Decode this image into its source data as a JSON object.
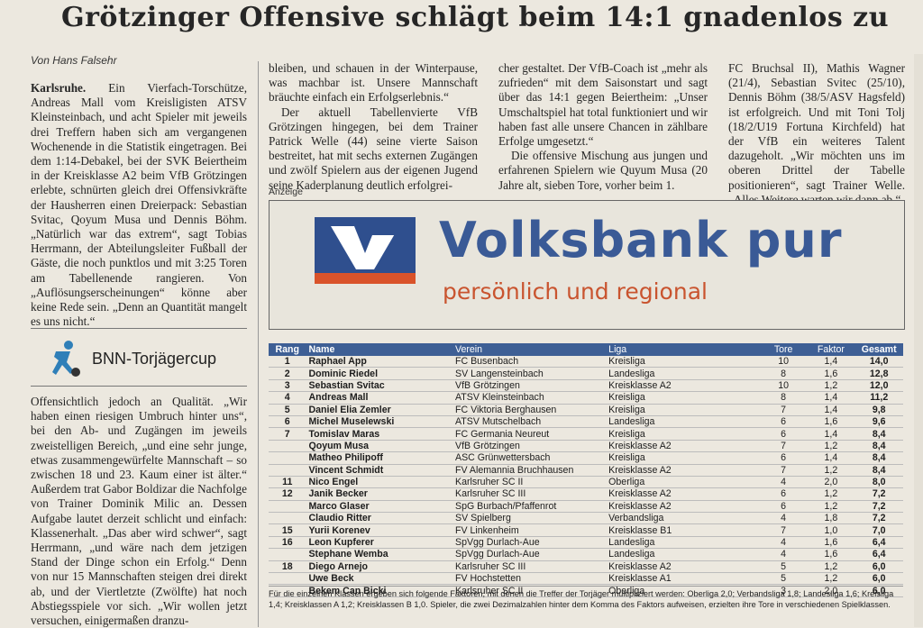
{
  "headline": "Grötzinger Offensive schlägt beim 14:1 gnadenlos zu",
  "byline": "Von Hans Falsehr",
  "col1_lead": "Karlsruhe.",
  "col1_text": "Ein Vierfach-Torschütze, Andreas Mall vom Kreisligisten ATSV Kleinsteinbach, und acht Spieler mit jeweils drei Treffern haben sich am vergangenen Wochenende in die Statistik eingetragen. Bei dem 1:14-Debakel, bei der SVK Beiertheim in der Kreisklasse A2 beim VfB Grötzingen erlebte, schnürten gleich drei Offensivkräfte der Hausherren einen Dreierpack: Sebastian Svitac, Qoyum Musa und Dennis Böhm. „Natürlich war das extrem“, sagt Tobias Herrmann, der Abteilungsleiter Fußball der Gäste, die noch punktlos und mit 3:25 Toren am Tabellenende rangieren. Von „Auflösungserscheinungen“ könne aber keine Rede sein. „Denn an Quantität mangelt es uns nicht.“",
  "bnn_title": "BNN-Torjägercup",
  "col1b_text": "Offensichtlich jedoch an Qualität. „Wir haben einen riesigen Umbruch hinter uns“, bei den Ab- und Zugängen im jeweils zweistelligen Bereich, „und eine sehr junge, etwas zusammengewürfelte Mannschaft – so zwischen 18 und 23. Kaum einer ist älter.“ Außerdem trat Gabor Boldizar die Nachfolge von Trainer Dominik Milic an. Dessen Aufgabe lautet derzeit schlicht und einfach: Klassenerhalt. „Das aber wird schwer“, sagt Herrmann, „und wäre nach dem jetzigen Stand der Dinge schon ein Erfolg.“ Denn von nur 15 Mannschaften steigen drei direkt ab, und der Viertletzte (Zwölfte) hat noch Abstiegsspiele vor sich. „Wir wollen jetzt versuchen, einigermaßen dranzu-",
  "col2_text": "bleiben, und schauen in der Winterpause, was machbar ist. Unsere Mannschaft bräuchte einfach ein Erfolgserlebnis.“",
  "col2_text2": "Der aktuell Tabellenvierte VfB Grötzingen hingegen, bei dem Trainer Patrick Welle (44) seine vierte Saison bestreitet, hat mit sechs externen Zugängen und zwölf Spielern aus der eigenen Jugend seine Kaderplanung deutlich erfolgrei-",
  "col3_text": "cher gestaltet. Der VfB-Coach ist „mehr als zufrieden“ mit dem Saisonstart und sagt über das 14:1 gegen Beiertheim: „Unser Umschaltspiel hat total funktioniert und wir haben fast alle unsere Chancen in zählbare Erfolge umgesetzt.“",
  "col3_text2": "Die offensive Mischung aus jungen und erfahrenen Spielern wie Quyum Musa (20 Jahre alt, sieben Tore, vorher beim 1.",
  "col4_text": "FC Bruchsal II), Mathis Wagner (21/4), Sebastian Svitec (25/10), Dennis Böhm (38/5/ASV Hagsfeld) ist erfolgreich. Und mit Toni Tolj (18/2/U19 Fortuna Kirchfeld) hat der VfB ein weiteres Talent dazugeholt. „Wir möchten uns im oberen Drittel der Tabelle positionieren“, sagt Trainer Welle. „Alles Weitere warten wir dann ab.“",
  "ad_label": "Anzeige",
  "ad_brand": "Volksbank pur",
  "ad_tagline": "persönlich und regional",
  "table_headers": {
    "rang": "Rang",
    "name": "Name",
    "verein": "Verein",
    "liga": "Liga",
    "tore": "Tore",
    "faktor": "Faktor",
    "gesamt": "Gesamt"
  },
  "table_rows": [
    {
      "rang": "1",
      "name": "Raphael App",
      "verein": "FC Busenbach",
      "liga": "Kreisliga",
      "tore": "10",
      "faktor": "1,4",
      "gesamt": "14,0"
    },
    {
      "rang": "2",
      "name": "Dominic Riedel",
      "verein": "SV Langensteinbach",
      "liga": "Landesliga",
      "tore": "8",
      "faktor": "1,6",
      "gesamt": "12,8"
    },
    {
      "rang": "3",
      "name": "Sebastian Svitac",
      "verein": "VfB Grötzingen",
      "liga": "Kreisklasse A2",
      "tore": "10",
      "faktor": "1,2",
      "gesamt": "12,0"
    },
    {
      "rang": "4",
      "name": "Andreas Mall",
      "verein": "ATSV Kleinsteinbach",
      "liga": "Kreisliga",
      "tore": "8",
      "faktor": "1,4",
      "gesamt": "11,2"
    },
    {
      "rang": "5",
      "name": "Daniel Elia Zemler",
      "verein": "FC Viktoria Berghausen",
      "liga": "Kreisliga",
      "tore": "7",
      "faktor": "1,4",
      "gesamt": "9,8"
    },
    {
      "rang": "6",
      "name": "Michel Muselewski",
      "verein": "ATSV Mutschelbach",
      "liga": "Landesliga",
      "tore": "6",
      "faktor": "1,6",
      "gesamt": "9,6"
    },
    {
      "rang": "7",
      "name": "Tomislav Maras",
      "verein": "FC Germania Neureut",
      "liga": "Kreisliga",
      "tore": "6",
      "faktor": "1,4",
      "gesamt": "8,4"
    },
    {
      "rang": "",
      "name": "Qoyum Musa",
      "verein": "VfB Grötzingen",
      "liga": "Kreisklasse A2",
      "tore": "7",
      "faktor": "1,2",
      "gesamt": "8,4"
    },
    {
      "rang": "",
      "name": "Matheo Philipoff",
      "verein": "ASC Grünwettersbach",
      "liga": "Kreisliga",
      "tore": "6",
      "faktor": "1,4",
      "gesamt": "8,4"
    },
    {
      "rang": "",
      "name": "Vincent Schmidt",
      "verein": "FV Alemannia Bruchhausen",
      "liga": "Kreisklasse A2",
      "tore": "7",
      "faktor": "1,2",
      "gesamt": "8,4"
    },
    {
      "rang": "11",
      "name": "Nico Engel",
      "verein": "Karlsruher SC II",
      "liga": "Oberliga",
      "tore": "4",
      "faktor": "2,0",
      "gesamt": "8,0"
    },
    {
      "rang": "12",
      "name": "Janik Becker",
      "verein": "Karlsruher SC III",
      "liga": "Kreisklasse A2",
      "tore": "6",
      "faktor": "1,2",
      "gesamt": "7,2"
    },
    {
      "rang": "",
      "name": "Marco Glaser",
      "verein": "SpG Burbach/Pfaffenrot",
      "liga": "Kreisklasse A2",
      "tore": "6",
      "faktor": "1,2",
      "gesamt": "7,2"
    },
    {
      "rang": "",
      "name": "Claudio Ritter",
      "verein": "SV Spielberg",
      "liga": "Verbandsliga",
      "tore": "4",
      "faktor": "1,8",
      "gesamt": "7,2"
    },
    {
      "rang": "15",
      "name": "Yurii Korenev",
      "verein": "FV Linkenheim",
      "liga": "Kreisklasse B1",
      "tore": "7",
      "faktor": "1,0",
      "gesamt": "7,0"
    },
    {
      "rang": "16",
      "name": "Leon Kupferer",
      "verein": "SpVgg Durlach-Aue",
      "liga": "Landesliga",
      "tore": "4",
      "faktor": "1,6",
      "gesamt": "6,4"
    },
    {
      "rang": "",
      "name": "Stephane Wemba",
      "verein": "SpVgg Durlach-Aue",
      "liga": "Landesliga",
      "tore": "4",
      "faktor": "1,6",
      "gesamt": "6,4"
    },
    {
      "rang": "18",
      "name": "Diego Arnejo",
      "verein": "Karlsruher SC III",
      "liga": "Kreisklasse A2",
      "tore": "5",
      "faktor": "1,2",
      "gesamt": "6,0"
    },
    {
      "rang": "",
      "name": "Uwe Beck",
      "verein": "FV Hochstetten",
      "liga": "Kreisklasse A1",
      "tore": "5",
      "faktor": "1,2",
      "gesamt": "6,0"
    },
    {
      "rang": "",
      "name": "Bekem Can Bicki",
      "verein": "Karlsruher SC II",
      "liga": "Oberliga",
      "tore": "3",
      "faktor": "2,0",
      "gesamt": "6,0"
    }
  ],
  "footnote": "Für die einzelnen Klassen ergeben sich folgende Faktoren, mit denen die Treffer der Torjäger multipliziert werden: Oberliga 2,0; Verbandsliga 1,8; Landesliga 1,6; Kreisliga 1,4; Kreisklassen A 1,2; Kreisklassen B 1,0. Spieler, die zwei Dezimalzahlen hinter dem Komma des Faktors aufweisen, erzielten ihre Tore in verschiedenen Spielklassen.",
  "colors": {
    "table_header": "#3e5f95",
    "brand_blue": "#3a5a96",
    "brand_orange": "#c9542f"
  },
  "icons": {
    "bnn": "soccer-player-icon",
    "ad_logo": "volksbank-logo"
  }
}
